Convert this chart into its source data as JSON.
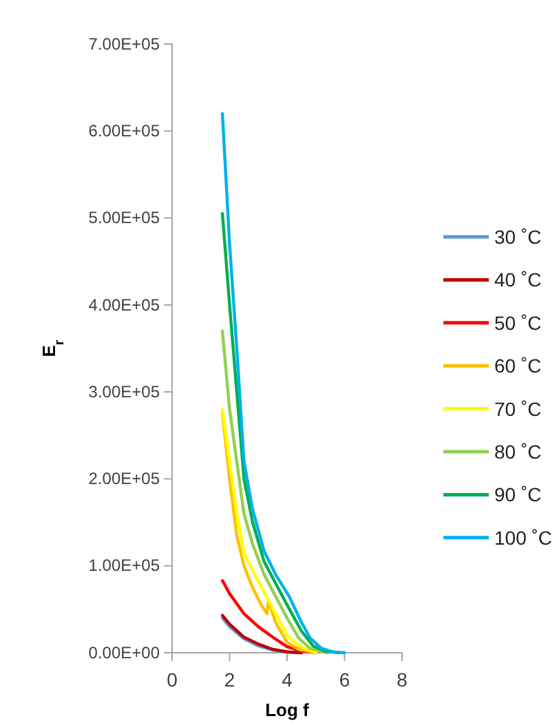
{
  "chart_data": {
    "type": "line",
    "xlabel": "Log f",
    "ylabel": "E$_{r}$",
    "xlim": [
      0,
      8
    ],
    "xticks": [
      0,
      2,
      4,
      6,
      8
    ],
    "ylim": [
      0,
      700000
    ],
    "yticks": [
      {
        "value": 0,
        "label": "0.00E+00"
      },
      {
        "value": 100000,
        "label": "1.00E+05"
      },
      {
        "value": 200000,
        "label": "2.00E+05"
      },
      {
        "value": 300000,
        "label": "3.00E+05"
      },
      {
        "value": 400000,
        "label": "4.00E+05"
      },
      {
        "value": 500000,
        "label": "5.00E+05"
      },
      {
        "value": 600000,
        "label": "6.00E+05"
      },
      {
        "value": 700000,
        "label": "7.00E+05"
      }
    ],
    "grid": false,
    "legend": "right",
    "marker": "none",
    "line_style": "solid",
    "series": [
      {
        "name": "30 ˚C",
        "color": "#5b9bd5",
        "x": [
          1.75,
          2.0,
          2.5,
          3.0,
          3.5,
          4.0,
          4.5
        ],
        "values": [
          40000,
          30000,
          16000,
          8000,
          3000,
          1000,
          0
        ]
      },
      {
        "name": "40 ˚C",
        "color": "#c00000",
        "x": [
          1.75,
          2.0,
          2.5,
          3.0,
          3.5,
          4.0,
          4.5
        ],
        "values": [
          43000,
          33000,
          18000,
          10000,
          4000,
          1000,
          0
        ]
      },
      {
        "name": "50 ˚C",
        "color": "#ff0000",
        "x": [
          1.75,
          2.0,
          2.5,
          3.0,
          3.5,
          4.0,
          4.5,
          5.0
        ],
        "values": [
          83000,
          68000,
          45000,
          30000,
          18000,
          7000,
          2000,
          0
        ]
      },
      {
        "name": "60 ˚C",
        "color": "#ffc000",
        "x": [
          1.75,
          2.0,
          2.25,
          2.5,
          2.8,
          3.1,
          3.3,
          3.35,
          3.6,
          4.0,
          4.4,
          5.0
        ],
        "values": [
          275000,
          200000,
          135000,
          100000,
          75000,
          55000,
          45000,
          60000,
          35000,
          12000,
          4000,
          0
        ]
      },
      {
        "name": "70 ˚C",
        "color": "#ffff00",
        "x": [
          1.75,
          2.0,
          2.25,
          2.5,
          2.8,
          3.2,
          3.6,
          4.0,
          4.4,
          5.0
        ],
        "values": [
          280000,
          220000,
          160000,
          115000,
          95000,
          70000,
          45000,
          20000,
          8000,
          0
        ]
      },
      {
        "name": "80 ˚C",
        "color": "#92d050",
        "x": [
          1.75,
          2.0,
          2.25,
          2.5,
          2.8,
          3.2,
          3.6,
          4.0,
          4.4,
          4.8,
          5.4
        ],
        "values": [
          370000,
          280000,
          220000,
          160000,
          125000,
          90000,
          65000,
          40000,
          17000,
          5000,
          0
        ]
      },
      {
        "name": "90 ˚C",
        "color": "#00b050",
        "x": [
          1.75,
          2.0,
          2.25,
          2.5,
          2.8,
          3.2,
          3.6,
          4.0,
          4.5,
          4.9,
          5.3,
          5.8
        ],
        "values": [
          505000,
          400000,
          300000,
          200000,
          150000,
          105000,
          80000,
          55000,
          25000,
          8000,
          2000,
          0
        ]
      },
      {
        "name": "100 ˚C",
        "color": "#00b0f0",
        "x": [
          1.75,
          2.0,
          2.25,
          2.5,
          2.8,
          3.2,
          3.6,
          4.07,
          4.5,
          4.8,
          5.2,
          5.6,
          6.0
        ],
        "values": [
          620000,
          470000,
          350000,
          220000,
          165000,
          117000,
          90000,
          65000,
          35000,
          17000,
          5000,
          1000,
          0
        ]
      }
    ]
  }
}
